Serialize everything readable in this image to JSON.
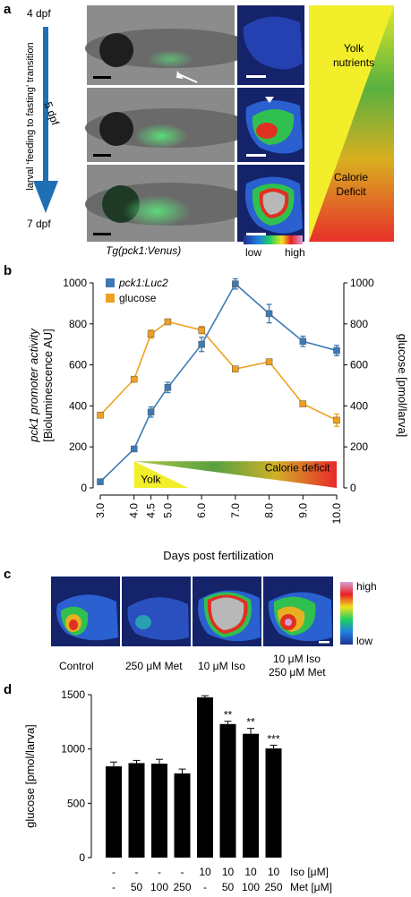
{
  "panel_a": {
    "label": "a",
    "stage_start": "4 dpf",
    "stage_mid": "5 dpf",
    "stage_end": "7 dpf",
    "transition_label": "larval ‘feeding to fasting’ transition",
    "transgene_label": "Tg(pck1:Venus)",
    "scale_low": "low",
    "scale_high": "high",
    "yolk_label_1": "Yolk",
    "yolk_label_2": "nutrients",
    "deficit_label_1": "Calorie",
    "deficit_label_2": "Deficit",
    "colors": {
      "arrow": "#1f6fb5",
      "fluorescence": "#3fc25a",
      "yolk": "#f2ee2a",
      "deficit": "#e8302a"
    }
  },
  "panel_b": {
    "label": "b",
    "yolk_band": "Yolk",
    "deficit_band": "Calorie deficit"
  },
  "panel_c": {
    "label": "c",
    "conditions": [
      "Control",
      "250 μM Met",
      "10 μM Iso",
      "10 μM Iso",
      "250 μM Met"
    ],
    "scale_high": "high",
    "scale_low": "low"
  },
  "panel_d": {
    "label": "d",
    "iso_row": [
      "-",
      "-",
      "-",
      "-",
      "10",
      "10",
      "10",
      "10"
    ],
    "met_row": [
      "-",
      "50",
      "100",
      "250",
      "-",
      "50",
      "100",
      "250"
    ],
    "iso_label": "Iso [μM]",
    "met_label": "Met [μM]"
  },
  "chart_data": [
    {
      "type": "line",
      "panel": "b",
      "x": [
        3.0,
        4.0,
        4.5,
        5.0,
        6.0,
        7.0,
        8.0,
        9.0,
        10.0
      ],
      "xticks": [
        "3.0",
        "4.0",
        "4.5",
        "5.0",
        "6.0",
        "7.0",
        "8.0",
        "9.0",
        "10.0"
      ],
      "xlabel": "Days post fertilization",
      "ylabel_left_1": "pck1 promoter activity",
      "ylabel_left_2": "[Bioluminescence AU]",
      "ylabel_right": "glucose [pmol/larva]",
      "ylim": [
        0,
        1000
      ],
      "yticks": [
        "0",
        "200",
        "400",
        "600",
        "800",
        "1000"
      ],
      "legend_position": "top-left",
      "series": [
        {
          "name": "pck1:Luc2",
          "color": "#3d7ab5",
          "axis": "left",
          "values": [
            30,
            190,
            370,
            490,
            700,
            995,
            850,
            715,
            670
          ],
          "errors": [
            5,
            10,
            25,
            25,
            35,
            25,
            45,
            25,
            25
          ]
        },
        {
          "name": "glucose",
          "color": "#f0a020",
          "axis": "right",
          "values": [
            355,
            530,
            750,
            810,
            770,
            580,
            615,
            410,
            330
          ],
          "errors": [
            10,
            12,
            20,
            12,
            18,
            10,
            10,
            10,
            30
          ]
        }
      ]
    },
    {
      "type": "bar",
      "panel": "d",
      "ylabel": "glucose [pmol/larva]",
      "ylim": [
        0,
        1500
      ],
      "yticks": [
        "0",
        "500",
        "1000",
        "1500"
      ],
      "values": [
        840,
        870,
        865,
        775,
        1475,
        1230,
        1140,
        1005
      ],
      "errors": [
        40,
        25,
        40,
        40,
        15,
        25,
        50,
        30
      ],
      "significance": [
        "",
        "",
        "",
        "",
        "",
        "**",
        "**",
        "***"
      ]
    }
  ]
}
